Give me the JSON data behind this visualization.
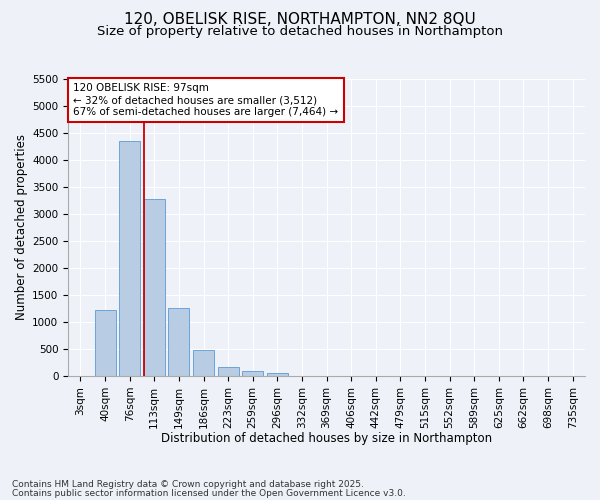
{
  "title": "120, OBELISK RISE, NORTHAMPTON, NN2 8QU",
  "subtitle": "Size of property relative to detached houses in Northampton",
  "xlabel": "Distribution of detached houses by size in Northampton",
  "ylabel": "Number of detached properties",
  "footnote1": "Contains HM Land Registry data © Crown copyright and database right 2025.",
  "footnote2": "Contains public sector information licensed under the Open Government Licence v3.0.",
  "categories": [
    "3sqm",
    "40sqm",
    "76sqm",
    "113sqm",
    "149sqm",
    "186sqm",
    "223sqm",
    "259sqm",
    "296sqm",
    "332sqm",
    "369sqm",
    "406sqm",
    "442sqm",
    "479sqm",
    "515sqm",
    "552sqm",
    "589sqm",
    "625sqm",
    "662sqm",
    "698sqm",
    "735sqm"
  ],
  "values": [
    0,
    1220,
    4350,
    3280,
    1260,
    490,
    175,
    90,
    50,
    0,
    0,
    0,
    0,
    0,
    0,
    0,
    0,
    0,
    0,
    0,
    0
  ],
  "bar_color": "#b8cce4",
  "bar_edge_color": "#5b9bd5",
  "ylim": [
    0,
    5500
  ],
  "yticks": [
    0,
    500,
    1000,
    1500,
    2000,
    2500,
    3000,
    3500,
    4000,
    4500,
    5000,
    5500
  ],
  "annotation_text_line1": "120 OBELISK RISE: 97sqm",
  "annotation_text_line2": "← 32% of detached houses are smaller (3,512)",
  "annotation_text_line3": "67% of semi-detached houses are larger (7,464) →",
  "annotation_box_color": "#ffffff",
  "annotation_box_edge_color": "#cc0000",
  "background_color": "#eef2f8",
  "grid_color": "#ffffff",
  "title_fontsize": 11,
  "subtitle_fontsize": 9.5,
  "axis_label_fontsize": 8.5,
  "tick_fontsize": 7.5,
  "annotation_fontsize": 7.5,
  "footnote_fontsize": 6.5
}
